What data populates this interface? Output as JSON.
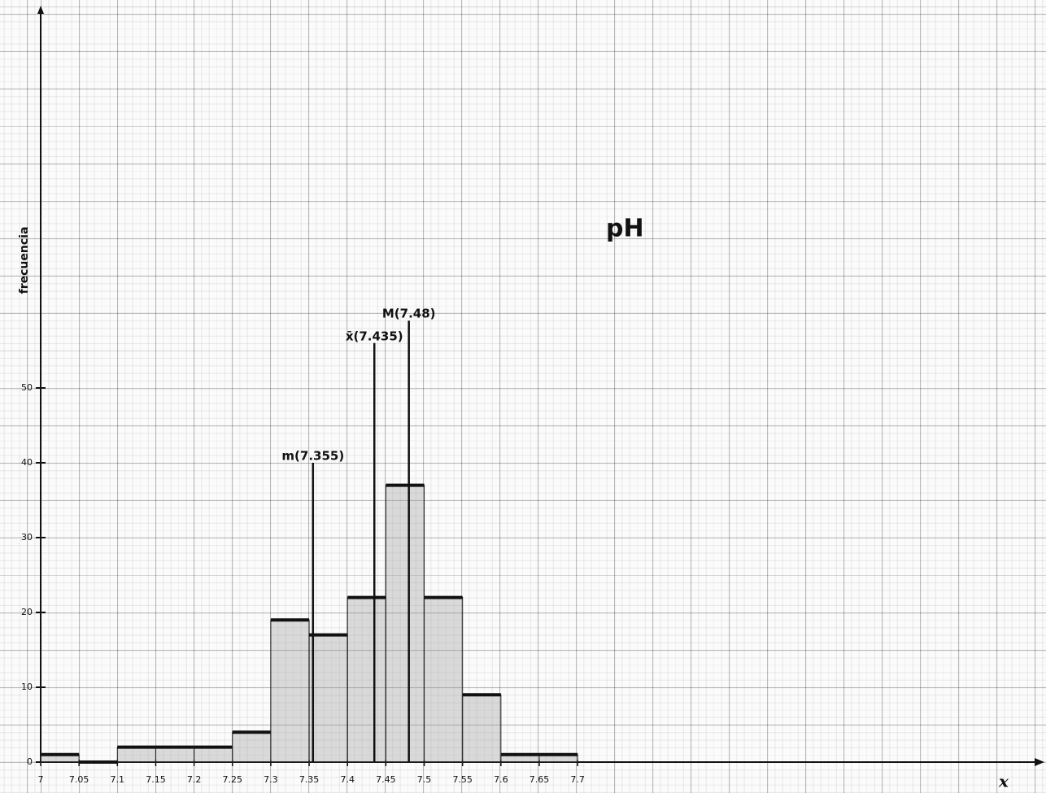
{
  "chart_data": {
    "type": "histogram",
    "title": "pH",
    "xlabel": "x",
    "ylabel": "frecuencia",
    "bins": [
      7,
      7.05,
      7.1,
      7.15,
      7.2,
      7.25,
      7.3,
      7.35,
      7.4,
      7.45,
      7.5,
      7.55,
      7.6,
      7.65,
      7.7
    ],
    "values": [
      1,
      0,
      2,
      2,
      2,
      4,
      19,
      17,
      22,
      37,
      22,
      9,
      1,
      1
    ],
    "color": "#9a9a9a",
    "xlim": [
      7,
      8.3
    ],
    "ylim": [
      0,
      100
    ],
    "xticks": [
      7,
      7.05,
      7.1,
      7.15,
      7.2,
      7.25,
      7.3,
      7.35,
      7.4,
      7.45,
      7.5,
      7.55,
      7.6,
      7.65,
      7.7
    ],
    "yticks": [
      0,
      10,
      20,
      30,
      40,
      50
    ],
    "annotations": [
      {
        "text": "m(7.355)",
        "x": 7.355,
        "y": 40
      },
      {
        "text": "x̄(7.435)",
        "x": 7.435,
        "y": 56
      },
      {
        "text": "M(7.48)",
        "x": 7.48,
        "y": 59
      }
    ]
  }
}
